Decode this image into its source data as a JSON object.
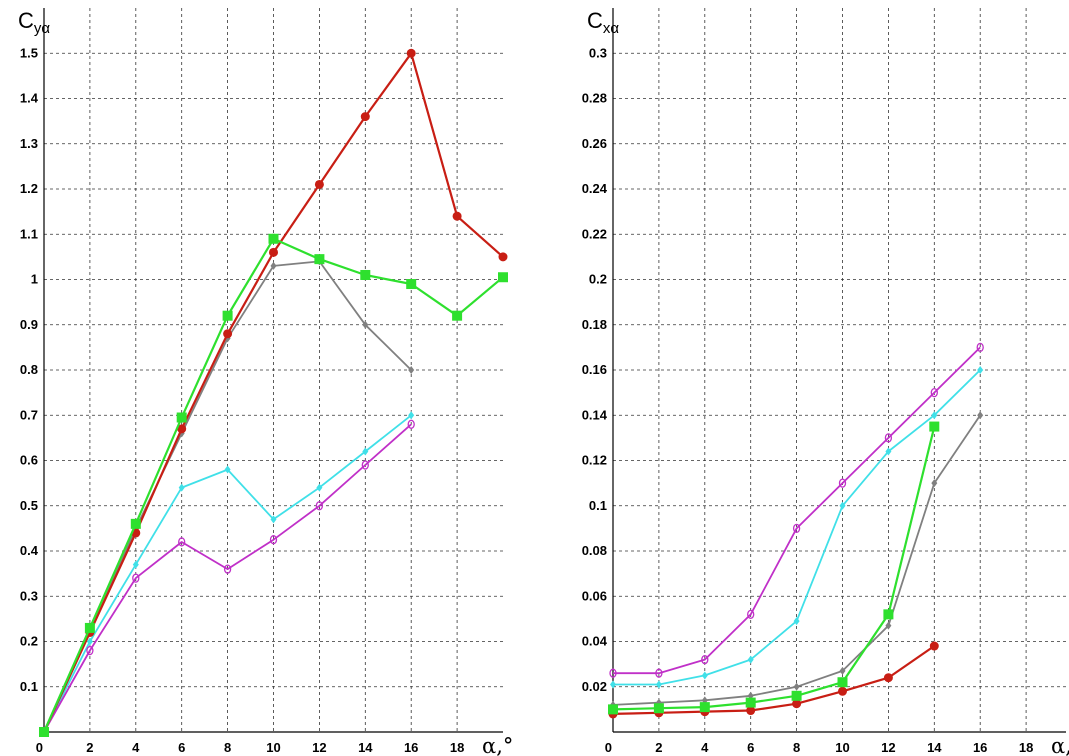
{
  "chart_data": [
    {
      "type": "line",
      "ylabel_main": "C",
      "ylabel_sub": "yα",
      "xlabel": "α,°",
      "xlim": [
        0,
        20
      ],
      "ylim": [
        0,
        1.6
      ],
      "x_ticks": [
        0,
        2,
        4,
        6,
        8,
        10,
        12,
        14,
        16,
        18
      ],
      "x_tick_labels": [
        "0",
        "2",
        "4",
        "6",
        "8",
        "10",
        "12",
        "14",
        "16",
        "18"
      ],
      "y_ticks": [
        0.1,
        0.2,
        0.3,
        0.4,
        0.5,
        0.6,
        0.7,
        0.8,
        0.9,
        1,
        1.1,
        1.2,
        1.3,
        1.4,
        1.5
      ],
      "y_tick_labels": [
        "0.1",
        "0.2",
        "0.3",
        "0.4",
        "0.5",
        "0.6",
        "0.7",
        "0.8",
        "0.9",
        "1",
        "1.1",
        "1.2",
        "1.3",
        "1.4",
        "1.5"
      ],
      "grid": true,
      "series": [
        {
          "color": "#808080",
          "marker": "diamond",
          "x": [
            0,
            2,
            4,
            6,
            8,
            10,
            12,
            14,
            16
          ],
          "y": [
            0,
            0.22,
            0.45,
            0.66,
            0.87,
            1.03,
            1.04,
            0.9,
            0.8
          ]
        },
        {
          "color": "#40e0e8",
          "marker": "diamond",
          "x": [
            0,
            2,
            4,
            6,
            8,
            10,
            12,
            14,
            16
          ],
          "y": [
            0,
            0.2,
            0.37,
            0.54,
            0.58,
            0.47,
            0.54,
            0.62,
            0.7
          ]
        },
        {
          "color": "#c030c8",
          "marker": "open-diamond",
          "x": [
            0,
            2,
            4,
            6,
            8,
            10,
            12,
            14,
            16
          ],
          "y": [
            0,
            0.18,
            0.34,
            0.42,
            0.36,
            0.425,
            0.5,
            0.59,
            0.68
          ]
        },
        {
          "color": "#c81e14",
          "marker": "circle",
          "x": [
            0,
            2,
            4,
            6,
            8,
            10,
            12,
            14,
            16,
            18,
            20
          ],
          "y": [
            0,
            0.22,
            0.44,
            0.67,
            0.88,
            1.06,
            1.21,
            1.36,
            1.5,
            1.14,
            1.05
          ]
        },
        {
          "color": "#2ee02e",
          "marker": "square",
          "x": [
            0,
            2,
            4,
            6,
            8,
            10,
            12,
            14,
            16,
            18,
            20
          ],
          "y": [
            0,
            0.23,
            0.46,
            0.695,
            0.92,
            1.09,
            1.045,
            1.01,
            0.99,
            0.92,
            1.005
          ]
        }
      ]
    },
    {
      "type": "line",
      "ylabel_main": "C",
      "ylabel_sub": "xα",
      "xlabel": "α,°",
      "xlim": [
        0,
        20
      ],
      "ylim": [
        0,
        0.32
      ],
      "x_ticks": [
        0,
        2,
        4,
        6,
        8,
        10,
        12,
        14,
        16,
        18
      ],
      "x_tick_labels": [
        "0",
        "2",
        "4",
        "6",
        "8",
        "10",
        "12",
        "14",
        "16",
        "18"
      ],
      "y_ticks": [
        0.02,
        0.04,
        0.06,
        0.08,
        0.1,
        0.12,
        0.14,
        0.16,
        0.18,
        0.2,
        0.22,
        0.24,
        0.26,
        0.28,
        0.3
      ],
      "y_tick_labels": [
        "0.02",
        "0.04",
        "0.06",
        "0.08",
        "0.1",
        "0.12",
        "0.14",
        "0.16",
        "0.18",
        "0.2",
        "0.22",
        "0.24",
        "0.26",
        "0.28",
        "0.3"
      ],
      "grid": true,
      "series": [
        {
          "color": "#808080",
          "marker": "diamond",
          "x": [
            0,
            2,
            4,
            6,
            8,
            10,
            12,
            14,
            16
          ],
          "y": [
            0.012,
            0.013,
            0.014,
            0.016,
            0.02,
            0.027,
            0.047,
            0.11,
            0.14
          ]
        },
        {
          "color": "#40e0e8",
          "marker": "diamond",
          "x": [
            0,
            2,
            4,
            6,
            8,
            10,
            12,
            14,
            16
          ],
          "y": [
            0.021,
            0.021,
            0.025,
            0.032,
            0.049,
            0.1,
            0.124,
            0.14,
            0.16
          ]
        },
        {
          "color": "#c030c8",
          "marker": "open-diamond",
          "x": [
            0,
            2,
            4,
            6,
            8,
            10,
            12,
            14,
            16
          ],
          "y": [
            0.026,
            0.026,
            0.032,
            0.052,
            0.09,
            0.11,
            0.13,
            0.15,
            0.17
          ]
        },
        {
          "color": "#c81e14",
          "marker": "circle",
          "x": [
            0,
            2,
            4,
            6,
            8,
            10,
            12,
            14
          ],
          "y": [
            0.008,
            0.0085,
            0.009,
            0.0095,
            0.0125,
            0.018,
            0.024,
            0.038
          ]
        },
        {
          "color": "#2ee02e",
          "marker": "square",
          "x": [
            0,
            2,
            4,
            6,
            8,
            10,
            12,
            14
          ],
          "y": [
            0.01,
            0.0105,
            0.011,
            0.013,
            0.016,
            0.022,
            0.052,
            0.135
          ]
        }
      ]
    }
  ]
}
